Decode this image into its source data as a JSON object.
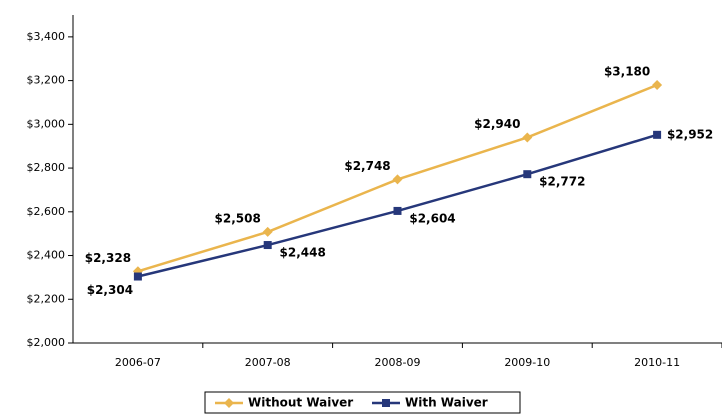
{
  "chart_data": {
    "type": "line",
    "categories": [
      "2006-07",
      "2007-08",
      "2008-09",
      "2009-10",
      "2010-11"
    ],
    "series": [
      {
        "name": "Without Waiver",
        "color": "#eab54d",
        "marker": "diamond",
        "values": [
          2328,
          2508,
          2748,
          2940,
          3180
        ],
        "value_labels": [
          "$2,328",
          "$2,508",
          "$2,748",
          "$2,940",
          "$3,180"
        ]
      },
      {
        "name": "With Waiver",
        "color": "#26377a",
        "marker": "square",
        "values": [
          2304,
          2448,
          2604,
          2772,
          2952
        ],
        "value_labels": [
          "$2,304",
          "$2,448",
          "$2,604",
          "$2,772",
          "$2,952"
        ]
      }
    ],
    "ylim": [
      2000,
      3500
    ],
    "yticks": [
      {
        "value": 2000,
        "label": "$2,000"
      },
      {
        "value": 2200,
        "label": "$2,200"
      },
      {
        "value": 2400,
        "label": "$2,400"
      },
      {
        "value": 2600,
        "label": "$2,600"
      },
      {
        "value": 2800,
        "label": "$2,800"
      },
      {
        "value": 3000,
        "label": "$3,000"
      },
      {
        "value": 3200,
        "label": "$3,200"
      },
      {
        "value": 3400,
        "label": "$3,400"
      }
    ],
    "grid": false,
    "legend": "bottom"
  }
}
